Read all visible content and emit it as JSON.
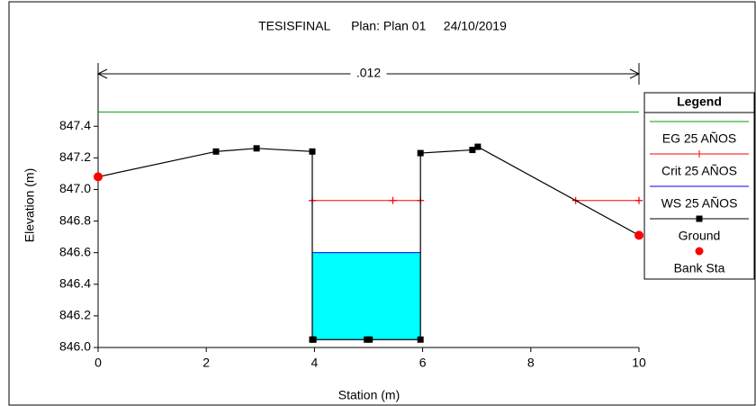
{
  "chart_data": {
    "type": "line",
    "title": "TESISFINAL      Plan: Plan 01     24/10/2019",
    "x_label": "Station (m)",
    "y_label": "Elevation (m)",
    "xlim": [
      0,
      10
    ],
    "ylim": [
      846.0,
      847.8
    ],
    "xticks": [
      0,
      2,
      4,
      6,
      8,
      10
    ],
    "yticks": [
      {
        "value": 846.0,
        "label": "846.0"
      },
      846.2,
      846.4,
      846.6,
      846.8,
      {
        "value": 847.0,
        "label": "847.0"
      },
      847.2,
      847.4
    ],
    "annotation": {
      "text": ".012",
      "x": [
        0,
        10
      ]
    },
    "legend_title": "Legend",
    "legend": "right",
    "series": [
      {
        "name": "EG 25 AÑOS",
        "color": "#00a000",
        "marker": "none",
        "x": [
          0,
          10
        ],
        "values": [
          847.49,
          847.49
        ]
      },
      {
        "name": "Crit 25 AÑOS",
        "color": "#ff0000",
        "marker": "plus",
        "x": [
          3.96,
          5.45,
          5.96,
          null,
          8.83,
          10
        ],
        "values": [
          846.93,
          846.93,
          846.93,
          null,
          846.93,
          846.93
        ]
      },
      {
        "name": "WS 25 AÑOS",
        "color": "#0000ff",
        "marker": "none",
        "fill": "#00ffff",
        "x": [
          3.96,
          5.96
        ],
        "values": [
          846.6,
          846.6
        ]
      },
      {
        "name": "Ground",
        "color": "#000000",
        "marker": "square",
        "x": [
          0,
          2.18,
          2.93,
          3.96,
          3.96,
          3.98,
          4.97,
          5.02,
          5.96,
          5.96,
          6.92,
          7.02,
          10
        ],
        "values": [
          847.08,
          847.24,
          847.26,
          847.24,
          846.05,
          846.05,
          846.05,
          846.05,
          846.05,
          847.23,
          847.25,
          847.27,
          846.71
        ]
      },
      {
        "name": "Bank Sta",
        "color": "#ff0000",
        "marker": "circle",
        "line": false,
        "x": [
          0,
          10
        ],
        "values": [
          847.08,
          846.71
        ]
      }
    ]
  }
}
